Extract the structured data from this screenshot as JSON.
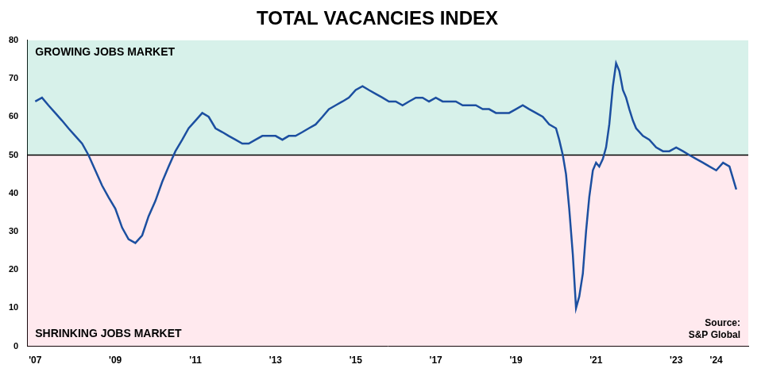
{
  "chart_data": {
    "type": "line",
    "title": "TOTAL VACANCIES INDEX",
    "x": [
      2007.0,
      2007.17,
      2007.33,
      2007.5,
      2007.67,
      2007.83,
      2008.0,
      2008.17,
      2008.33,
      2008.5,
      2008.67,
      2008.83,
      2009.0,
      2009.17,
      2009.33,
      2009.5,
      2009.67,
      2009.83,
      2010.0,
      2010.17,
      2010.33,
      2010.5,
      2010.67,
      2010.83,
      2011.0,
      2011.17,
      2011.33,
      2011.5,
      2011.67,
      2011.83,
      2012.0,
      2012.17,
      2012.33,
      2012.5,
      2012.67,
      2012.83,
      2013.0,
      2013.17,
      2013.33,
      2013.5,
      2013.67,
      2013.83,
      2014.0,
      2014.17,
      2014.33,
      2014.5,
      2014.67,
      2014.83,
      2015.0,
      2015.17,
      2015.33,
      2015.5,
      2015.67,
      2015.83,
      2016.0,
      2016.17,
      2016.33,
      2016.5,
      2016.67,
      2016.83,
      2017.0,
      2017.17,
      2017.33,
      2017.5,
      2017.67,
      2017.83,
      2018.0,
      2018.17,
      2018.33,
      2018.5,
      2018.67,
      2018.83,
      2019.0,
      2019.17,
      2019.33,
      2019.5,
      2019.67,
      2019.83,
      2020.0,
      2020.08,
      2020.17,
      2020.25,
      2020.33,
      2020.42,
      2020.5,
      2020.58,
      2020.67,
      2020.75,
      2020.83,
      2020.92,
      2021.0,
      2021.08,
      2021.17,
      2021.25,
      2021.33,
      2021.42,
      2021.5,
      2021.58,
      2021.67,
      2021.75,
      2021.83,
      2021.92,
      2022.0,
      2022.17,
      2022.33,
      2022.5,
      2022.67,
      2022.83,
      2023.0,
      2023.17,
      2023.33,
      2023.5,
      2023.67,
      2023.83,
      2024.0,
      2024.17,
      2024.33,
      2024.5
    ],
    "values": [
      64,
      65,
      63,
      61,
      59,
      57,
      55,
      53,
      50,
      46,
      42,
      39,
      36,
      31,
      28,
      27,
      29,
      34,
      38,
      43,
      47,
      51,
      54,
      57,
      59,
      61,
      60,
      57,
      56,
      55,
      54,
      53,
      53,
      54,
      55,
      55,
      55,
      54,
      55,
      55,
      56,
      57,
      58,
      60,
      62,
      63,
      64,
      65,
      67,
      68,
      67,
      66,
      65,
      64,
      64,
      63,
      64,
      65,
      65,
      64,
      65,
      64,
      64,
      64,
      63,
      63,
      63,
      62,
      62,
      61,
      61,
      61,
      62,
      63,
      62,
      61,
      60,
      58,
      57,
      54,
      50,
      45,
      36,
      24,
      10,
      13,
      19,
      30,
      39,
      46,
      48,
      47,
      49,
      52,
      58,
      68,
      74,
      72,
      67,
      65,
      62,
      59,
      57,
      55,
      54,
      52,
      51,
      51,
      52,
      51,
      50,
      49,
      48,
      47,
      46,
      48,
      47,
      41
    ],
    "color": "#1c4fa0",
    "xlim": [
      2006.8,
      2024.8
    ],
    "xticks": [
      {
        "value": 2007,
        "label": "'07"
      },
      {
        "value": 2009,
        "label": "'09"
      },
      {
        "value": 2011,
        "label": "'11"
      },
      {
        "value": 2013,
        "label": "'13"
      },
      {
        "value": 2015,
        "label": "'15"
      },
      {
        "value": 2017,
        "label": "'17"
      },
      {
        "value": 2019,
        "label": "'19"
      },
      {
        "value": 2021,
        "label": "'21"
      },
      {
        "value": 2023,
        "label": "'23"
      },
      {
        "value": 2024,
        "label": "'24"
      }
    ],
    "ylim": [
      0,
      80
    ],
    "yticks": [
      0,
      10,
      20,
      30,
      40,
      50,
      60,
      70,
      80
    ],
    "grid": false,
    "threshold": 50,
    "annotations": [
      "GROWING JOBS MARKET",
      "SHRINKING JOBS MARKET",
      "Source:\nS&P Global"
    ]
  }
}
